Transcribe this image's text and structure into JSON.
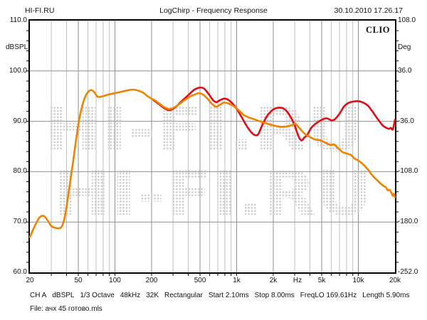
{
  "header": {
    "site": "HI-FI.RU",
    "title": "LogChirp - Frequency Response",
    "datetime": "30.10.2010 17.26.17"
  },
  "branding": "CLIO",
  "watermark_text": "HI-FI.RU",
  "status_bar": {
    "items": [
      "CH A",
      "dBSPL",
      "1/3 Octave",
      "48kHz",
      "32K",
      "Rectangular",
      "Start 2.10ms",
      "Stop 8.00ms",
      "FreqLO 169.61Hz",
      "Length 5.90ms"
    ]
  },
  "file_line": "File: ачх 45 готово.mls",
  "chart_data": {
    "type": "line",
    "title": "LogChirp - Frequency Response",
    "x_scale": "log",
    "xlim": [
      20,
      20000
    ],
    "grid": true,
    "colors": {
      "border": "#000000",
      "grid_major": "#8f8f8f",
      "grid_minor": "#c0c0c0",
      "watermark_dot": "#cccccc",
      "red_curve": "#e60a14",
      "orange_curve": "#f18200"
    },
    "left_axis": {
      "title": "dBSPL",
      "lim": [
        60,
        110
      ],
      "ticks": [
        {
          "v": 110,
          "label": "110.0"
        },
        {
          "v": 100,
          "label": "100.0"
        },
        {
          "v": 90,
          "label": "90.0"
        },
        {
          "v": 80,
          "label": "80.0"
        },
        {
          "v": 70,
          "label": "70.0"
        },
        {
          "v": 60,
          "label": "60.0"
        }
      ],
      "gridlines": [
        100,
        90,
        80,
        70
      ],
      "minor_tick_step": 2
    },
    "right_axis": {
      "title": "Deg",
      "lim": [
        -252,
        108
      ],
      "ticks": [
        {
          "v": 110,
          "label": "108.0"
        },
        {
          "v": 100,
          "label": "36.0"
        },
        {
          "v": 90,
          "label": "-36.0"
        },
        {
          "v": 80,
          "label": "-108.0"
        },
        {
          "v": 70,
          "label": "-180.0"
        },
        {
          "v": 60,
          "label": "-252.0"
        }
      ]
    },
    "x_ticks": [
      {
        "f": 20,
        "label": "20"
      },
      {
        "f": 50,
        "label": "50"
      },
      {
        "f": 100,
        "label": "100"
      },
      {
        "f": 200,
        "label": "200"
      },
      {
        "f": 500,
        "label": "500"
      },
      {
        "f": 1000,
        "label": "1k"
      },
      {
        "f": 2000,
        "label": "2k"
      },
      {
        "f": 5000,
        "label": "5k"
      },
      {
        "f": 10000,
        "label": "10k"
      },
      {
        "f": 20000,
        "label": "20k"
      }
    ],
    "x_unit_label": {
      "f": 3162,
      "label": "Hz"
    },
    "x_major_gridlines": [
      50,
      100,
      200,
      500,
      1000,
      2000,
      5000,
      10000
    ],
    "x_minor_gridlines": [
      30,
      40,
      60,
      70,
      80,
      90,
      300,
      400,
      600,
      700,
      800,
      900,
      3000,
      4000,
      6000,
      7000,
      8000,
      9000
    ],
    "series": [
      {
        "name": "red-curve",
        "color_key": "red_curve",
        "points": [
          [
            205,
            94.3
          ],
          [
            230,
            93.4
          ],
          [
            255,
            92.6
          ],
          [
            280,
            92.2
          ],
          [
            310,
            92.7
          ],
          [
            350,
            93.9
          ],
          [
            400,
            95.2
          ],
          [
            450,
            96.3
          ],
          [
            500,
            96.7
          ],
          [
            540,
            96.5
          ],
          [
            590,
            95.4
          ],
          [
            640,
            94.2
          ],
          [
            680,
            93.8
          ],
          [
            730,
            94.2
          ],
          [
            790,
            94.5
          ],
          [
            850,
            94.3
          ],
          [
            920,
            93.6
          ],
          [
            1000,
            92.5
          ],
          [
            1100,
            90.8
          ],
          [
            1200,
            89.2
          ],
          [
            1300,
            88.0
          ],
          [
            1400,
            87.3
          ],
          [
            1500,
            87.4
          ],
          [
            1600,
            88.9
          ],
          [
            1750,
            90.8
          ],
          [
            1900,
            91.9
          ],
          [
            2050,
            92.5
          ],
          [
            2200,
            92.7
          ],
          [
            2400,
            92.6
          ],
          [
            2600,
            91.9
          ],
          [
            2800,
            90.7
          ],
          [
            3000,
            89.2
          ],
          [
            3200,
            87.2
          ],
          [
            3400,
            86.2
          ],
          [
            3600,
            86.8
          ],
          [
            3800,
            87.3
          ],
          [
            4100,
            88.7
          ],
          [
            4500,
            89.6
          ],
          [
            5000,
            90.3
          ],
          [
            5500,
            90.6
          ],
          [
            6000,
            90.2
          ],
          [
            6400,
            90.4
          ],
          [
            7000,
            91.5
          ],
          [
            7600,
            92.9
          ],
          [
            8200,
            93.6
          ],
          [
            9000,
            93.9
          ],
          [
            10000,
            94.0
          ],
          [
            11000,
            93.7
          ],
          [
            12000,
            93.1
          ],
          [
            13000,
            92.0
          ],
          [
            14000,
            90.9
          ],
          [
            15000,
            89.9
          ],
          [
            16000,
            89.1
          ],
          [
            17000,
            88.7
          ],
          [
            17800,
            88.5
          ],
          [
            18500,
            88.7
          ],
          [
            19200,
            88.4
          ],
          [
            20000,
            90.3
          ]
        ]
      },
      {
        "name": "orange-curve",
        "color_key": "orange_curve",
        "points": [
          [
            20,
            67.0
          ],
          [
            22,
            69.3
          ],
          [
            24,
            70.9
          ],
          [
            26,
            71.2
          ],
          [
            28,
            70.3
          ],
          [
            30,
            69.2
          ],
          [
            33,
            68.8
          ],
          [
            36,
            68.9
          ],
          [
            38,
            70.2
          ],
          [
            40,
            73.0
          ],
          [
            42,
            76.5
          ],
          [
            45,
            81.5
          ],
          [
            48,
            86.5
          ],
          [
            51,
            90.5
          ],
          [
            54,
            93.2
          ],
          [
            57,
            94.9
          ],
          [
            60,
            95.8
          ],
          [
            64,
            96.2
          ],
          [
            68,
            95.7
          ],
          [
            72,
            94.9
          ],
          [
            77,
            94.9
          ],
          [
            85,
            95.2
          ],
          [
            95,
            95.5
          ],
          [
            110,
            95.8
          ],
          [
            125,
            96.1
          ],
          [
            140,
            96.3
          ],
          [
            155,
            96.1
          ],
          [
            170,
            95.7
          ],
          [
            185,
            95.0
          ],
          [
            200,
            94.5
          ],
          [
            215,
            94.1
          ],
          [
            235,
            93.4
          ],
          [
            255,
            92.8
          ],
          [
            280,
            92.4
          ],
          [
            310,
            92.8
          ],
          [
            350,
            93.7
          ],
          [
            400,
            94.7
          ],
          [
            450,
            95.3
          ],
          [
            490,
            95.6
          ],
          [
            530,
            95.3
          ],
          [
            580,
            94.4
          ],
          [
            630,
            93.4
          ],
          [
            680,
            92.9
          ],
          [
            730,
            93.3
          ],
          [
            780,
            93.7
          ],
          [
            840,
            93.6
          ],
          [
            900,
            93.3
          ],
          [
            960,
            92.9
          ],
          [
            1050,
            92.1
          ],
          [
            1150,
            91.2
          ],
          [
            1250,
            90.8
          ],
          [
            1400,
            90.4
          ],
          [
            1600,
            89.9
          ],
          [
            1800,
            89.5
          ],
          [
            2000,
            89.2
          ],
          [
            2300,
            88.9
          ],
          [
            2600,
            89.0
          ],
          [
            2900,
            89.3
          ],
          [
            3050,
            89.5
          ],
          [
            3300,
            88.6
          ],
          [
            3600,
            87.6
          ],
          [
            4000,
            86.9
          ],
          [
            4400,
            86.4
          ],
          [
            4900,
            86.2
          ],
          [
            5400,
            85.7
          ],
          [
            5900,
            85.3
          ],
          [
            6300,
            85.4
          ],
          [
            6800,
            84.7
          ],
          [
            7400,
            83.9
          ],
          [
            8000,
            83.6
          ],
          [
            8700,
            83.3
          ],
          [
            9300,
            82.6
          ],
          [
            10000,
            82.2
          ],
          [
            11000,
            81.4
          ],
          [
            12000,
            80.4
          ],
          [
            13000,
            79.3
          ],
          [
            14000,
            78.5
          ],
          [
            15000,
            77.8
          ],
          [
            16000,
            77.2
          ],
          [
            16800,
            76.9
          ],
          [
            17400,
            76.3
          ],
          [
            18000,
            76.4
          ],
          [
            18600,
            75.9
          ],
          [
            19200,
            75.2
          ],
          [
            19600,
            75.6
          ],
          [
            20000,
            74.9
          ]
        ]
      }
    ]
  }
}
